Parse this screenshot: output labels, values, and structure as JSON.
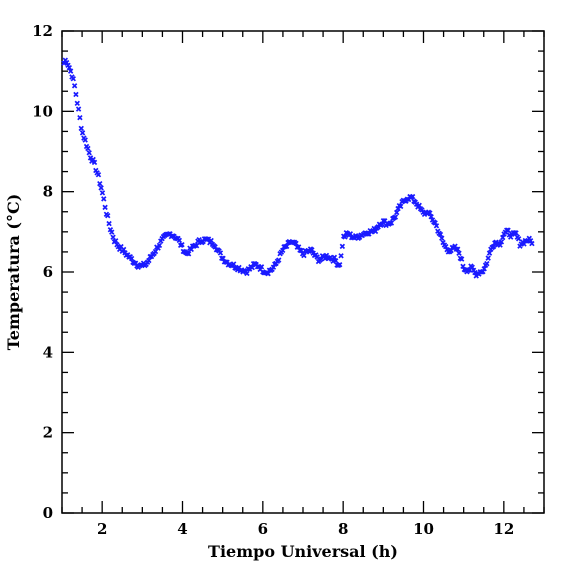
{
  "chart_data": {
    "type": "scatter",
    "title": "",
    "xlabel": "Tiempo Universal (h)",
    "ylabel": "Temperatura (°C)",
    "xlim": [
      1.0,
      13.0
    ],
    "ylim": [
      0,
      12
    ],
    "xticks": [
      2,
      4,
      6,
      8,
      10,
      12
    ],
    "yticks": [
      0,
      2,
      4,
      6,
      8,
      10,
      12
    ],
    "xminor_step": 0.5,
    "yminor_step": 0.5,
    "grid": false,
    "marker": "x",
    "color": "#1a1aff",
    "series": [
      {
        "anchors": [
          [
            1.05,
            11.2
          ],
          [
            1.1,
            11.3
          ],
          [
            1.18,
            11.1
          ],
          [
            1.25,
            10.9
          ],
          [
            1.32,
            10.6
          ],
          [
            1.4,
            10.1
          ],
          [
            1.5,
            9.5
          ],
          [
            1.6,
            9.2
          ],
          [
            1.7,
            8.9
          ],
          [
            1.8,
            8.7
          ],
          [
            1.9,
            8.4
          ],
          [
            2.0,
            8.0
          ],
          [
            2.1,
            7.5
          ],
          [
            2.2,
            7.1
          ],
          [
            2.3,
            6.8
          ],
          [
            2.4,
            6.65
          ],
          [
            2.5,
            6.55
          ],
          [
            2.6,
            6.45
          ],
          [
            2.7,
            6.35
          ],
          [
            2.8,
            6.25
          ],
          [
            2.9,
            6.17
          ],
          [
            3.0,
            6.15
          ],
          [
            3.1,
            6.2
          ],
          [
            3.2,
            6.35
          ],
          [
            3.3,
            6.5
          ],
          [
            3.4,
            6.65
          ],
          [
            3.5,
            6.8
          ],
          [
            3.6,
            6.9
          ],
          [
            3.7,
            6.95
          ],
          [
            3.8,
            6.9
          ],
          [
            3.9,
            6.8
          ],
          [
            4.0,
            6.6
          ],
          [
            4.1,
            6.45
          ],
          [
            4.2,
            6.55
          ],
          [
            4.3,
            6.65
          ],
          [
            4.4,
            6.75
          ],
          [
            4.5,
            6.8
          ],
          [
            4.6,
            6.8
          ],
          [
            4.7,
            6.75
          ],
          [
            4.8,
            6.7
          ],
          [
            4.9,
            6.5
          ],
          [
            5.0,
            6.35
          ],
          [
            5.1,
            6.25
          ],
          [
            5.2,
            6.2
          ],
          [
            5.3,
            6.15
          ],
          [
            5.4,
            6.1
          ],
          [
            5.5,
            6.05
          ],
          [
            5.6,
            6.02
          ],
          [
            5.7,
            6.1
          ],
          [
            5.8,
            6.18
          ],
          [
            5.9,
            6.15
          ],
          [
            6.0,
            6.05
          ],
          [
            6.1,
            6.0
          ],
          [
            6.2,
            6.05
          ],
          [
            6.3,
            6.15
          ],
          [
            6.4,
            6.35
          ],
          [
            6.5,
            6.55
          ],
          [
            6.6,
            6.65
          ],
          [
            6.7,
            6.75
          ],
          [
            6.8,
            6.7
          ],
          [
            6.9,
            6.55
          ],
          [
            7.0,
            6.45
          ],
          [
            7.1,
            6.5
          ],
          [
            7.2,
            6.55
          ],
          [
            7.3,
            6.4
          ],
          [
            7.4,
            6.3
          ],
          [
            7.5,
            6.35
          ],
          [
            7.6,
            6.4
          ],
          [
            7.7,
            6.35
          ],
          [
            7.8,
            6.3
          ],
          [
            7.9,
            6.15
          ],
          [
            7.95,
            6.4
          ],
          [
            8.0,
            6.85
          ],
          [
            8.1,
            6.95
          ],
          [
            8.2,
            6.9
          ],
          [
            8.3,
            6.85
          ],
          [
            8.4,
            6.9
          ],
          [
            8.5,
            6.95
          ],
          [
            8.6,
            7.0
          ],
          [
            8.7,
            7.0
          ],
          [
            8.8,
            7.05
          ],
          [
            8.9,
            7.2
          ],
          [
            9.0,
            7.25
          ],
          [
            9.1,
            7.2
          ],
          [
            9.2,
            7.25
          ],
          [
            9.3,
            7.4
          ],
          [
            9.4,
            7.6
          ],
          [
            9.5,
            7.75
          ],
          [
            9.6,
            7.85
          ],
          [
            9.7,
            7.85
          ],
          [
            9.8,
            7.75
          ],
          [
            9.9,
            7.6
          ],
          [
            10.0,
            7.45
          ],
          [
            10.1,
            7.5
          ],
          [
            10.2,
            7.35
          ],
          [
            10.3,
            7.2
          ],
          [
            10.4,
            6.95
          ],
          [
            10.5,
            6.7
          ],
          [
            10.6,
            6.55
          ],
          [
            10.7,
            6.55
          ],
          [
            10.8,
            6.6
          ],
          [
            10.9,
            6.45
          ],
          [
            11.0,
            6.1
          ],
          [
            11.1,
            6.05
          ],
          [
            11.2,
            6.1
          ],
          [
            11.3,
            5.95
          ],
          [
            11.4,
            6.0
          ],
          [
            11.5,
            6.05
          ],
          [
            11.6,
            6.3
          ],
          [
            11.7,
            6.65
          ],
          [
            11.8,
            6.75
          ],
          [
            11.9,
            6.7
          ],
          [
            12.0,
            6.95
          ],
          [
            12.1,
            7.0
          ],
          [
            12.2,
            6.9
          ],
          [
            12.3,
            6.95
          ],
          [
            12.4,
            6.7
          ],
          [
            12.5,
            6.75
          ],
          [
            12.6,
            6.8
          ],
          [
            12.7,
            6.75
          ]
        ]
      }
    ]
  }
}
